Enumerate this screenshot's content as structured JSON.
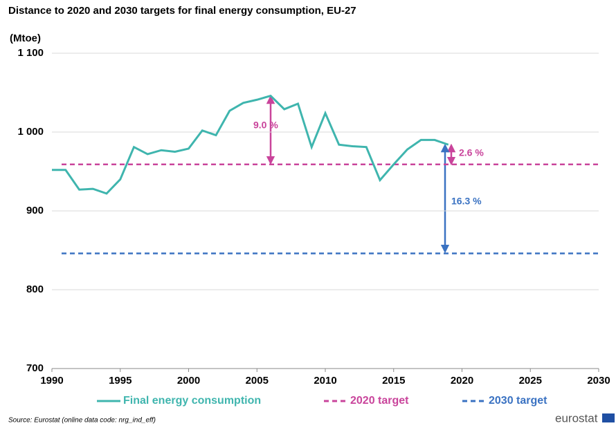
{
  "chart_data": {
    "type": "line",
    "title": "Distance to 2020 and 2030 targets for final energy consumption, EU-27",
    "y_label": "(Mtoe)",
    "x": [
      1990,
      1991,
      1992,
      1993,
      1994,
      1995,
      1996,
      1997,
      1998,
      1999,
      2000,
      2001,
      2002,
      2003,
      2004,
      2005,
      2006,
      2007,
      2008,
      2009,
      2010,
      2011,
      2012,
      2013,
      2014,
      2015,
      2016,
      2017,
      2018,
      2019
    ],
    "series": [
      {
        "name": "Final energy consumption",
        "color": "#3fb5ae",
        "values": [
          952,
          952,
          927,
          928,
          922,
          940,
          981,
          972,
          977,
          975,
          979,
          1002,
          996,
          1027,
          1037,
          1041,
          1046,
          1029,
          1036,
          981,
          1024,
          984,
          982,
          981,
          939,
          959,
          978,
          990,
          990,
          984
        ]
      }
    ],
    "reference_lines": [
      {
        "name": "2020 target",
        "value": 959,
        "color": "#c9449b"
      },
      {
        "name": "2030 target",
        "value": 846,
        "color": "#3a72c2"
      }
    ],
    "annotations": [
      {
        "text": "9.0 %",
        "color": "#c9449b"
      },
      {
        "text": "2.6 %",
        "color": "#c9449b"
      },
      {
        "text": "16.3 %",
        "color": "#3a72c2"
      }
    ],
    "xlim": [
      1990,
      2030
    ],
    "xticks": [
      1990,
      1995,
      2000,
      2005,
      2010,
      2015,
      2020,
      2025,
      2030
    ],
    "ylim": [
      700,
      1100
    ],
    "yticks": [
      700,
      800,
      900,
      {
        "value": 1000,
        "label": "1 000"
      },
      {
        "value": 1100,
        "label": "1 100"
      }
    ],
    "grid": true,
    "source": "Source: Eurostat (online data code: nrg_ind_eff)",
    "logo": "eurostat"
  }
}
